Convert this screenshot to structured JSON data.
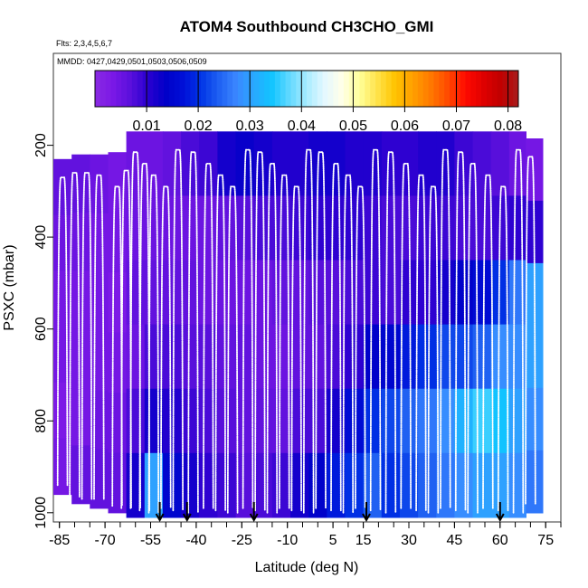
{
  "chart_data": {
    "type": "heatmap",
    "title": "ATOM4 Southbound CH3CHO_GMI",
    "flights_label": "Flts: 2,3,4,5,6,7",
    "dates_label": "MMDD: 0427,0429,0501,0503,0506,0509",
    "xlabel": "Latitude (deg N)",
    "ylabel": "PSXC (mbar)",
    "xlim": [
      -87,
      80
    ],
    "ylim": [
      1020,
      0
    ],
    "x_ticks": [
      -85,
      -70,
      -55,
      -40,
      -25,
      -10,
      5,
      15,
      30,
      45,
      60,
      75
    ],
    "x_tick_labels": [
      "-85",
      "-70",
      "-55",
      "-40",
      "-25",
      "-10",
      "5",
      "15",
      "30",
      "45",
      "60",
      "75"
    ],
    "y_ticks": [
      200,
      400,
      600,
      800,
      1000
    ],
    "y_tick_labels": [
      "200",
      "400",
      "600",
      "800",
      "1000"
    ],
    "colorbar": {
      "min": 0.0,
      "max": 0.082,
      "ticks": [
        0.01,
        0.02,
        0.03,
        0.04,
        0.05,
        0.06,
        0.07,
        0.08
      ],
      "tick_labels": [
        "0.01",
        "0.02",
        "0.03",
        "0.04",
        "0.05",
        "0.06",
        "0.07",
        "0.08"
      ],
      "colors": [
        "#8a2be2",
        "#7b18e6",
        "#5a10dc",
        "#2a00d0",
        "#0000c8",
        "#0010d8",
        "#0034e6",
        "#1f60f2",
        "#3a86ff",
        "#2aa8ff",
        "#10c4ff",
        "#60d8ff",
        "#a8ecff",
        "#e4f8ff",
        "#ffffe8",
        "#ffff9a",
        "#ffe24a",
        "#ffc400",
        "#ffa000",
        "#ff7a00",
        "#ff4a00",
        "#ff0a00",
        "#e00000",
        "#c00000",
        "#a81c1c"
      ]
    },
    "arrow_latitudes": [
      -52,
      -43,
      -21,
      16,
      60
    ],
    "profile_latitudes": [
      -84,
      -80,
      -76,
      -72,
      -66,
      -63,
      -60,
      -57,
      -54,
      -50,
      -46,
      -41,
      -36,
      -32,
      -28,
      -23,
      -19,
      -15,
      -11,
      -7,
      -3,
      1,
      6,
      10,
      14,
      19,
      24,
      29,
      34,
      38,
      42,
      47,
      51,
      56,
      61,
      66,
      70
    ],
    "columns": [
      {
        "lat": -84,
        "top": 230,
        "bottom": 960,
        "values": [
          0.006,
          0.005,
          0.004,
          0.004,
          0.003,
          0.004
        ]
      },
      {
        "lat": -78,
        "top": 220,
        "bottom": 980,
        "values": [
          0.006,
          0.005,
          0.004,
          0.004,
          0.004,
          0.006
        ]
      },
      {
        "lat": -72,
        "top": 220,
        "bottom": 990,
        "values": [
          0.005,
          0.004,
          0.004,
          0.004,
          0.005,
          0.006
        ]
      },
      {
        "lat": -66,
        "top": 215,
        "bottom": 1000,
        "values": [
          0.004,
          0.004,
          0.003,
          0.004,
          0.005,
          0.006
        ]
      },
      {
        "lat": -60,
        "top": 170,
        "bottom": 1010,
        "values": [
          0.005,
          0.005,
          0.006,
          0.005,
          0.008,
          0.012
        ]
      },
      {
        "lat": -54,
        "top": 170,
        "bottom": 1010,
        "values": [
          0.005,
          0.005,
          0.006,
          0.008,
          0.012,
          0.03
        ]
      },
      {
        "lat": -48,
        "top": 170,
        "bottom": 1010,
        "values": [
          0.006,
          0.005,
          0.006,
          0.008,
          0.011,
          0.015
        ]
      },
      {
        "lat": -42,
        "top": 170,
        "bottom": 1010,
        "values": [
          0.008,
          0.005,
          0.006,
          0.007,
          0.009,
          0.012
        ]
      },
      {
        "lat": -36,
        "top": 170,
        "bottom": 1010,
        "values": [
          0.009,
          0.005,
          0.005,
          0.007,
          0.008,
          0.01
        ]
      },
      {
        "lat": -30,
        "top": 170,
        "bottom": 1010,
        "values": [
          0.012,
          0.006,
          0.005,
          0.006,
          0.007,
          0.009
        ]
      },
      {
        "lat": -24,
        "top": 170,
        "bottom": 1010,
        "values": [
          0.013,
          0.007,
          0.005,
          0.006,
          0.006,
          0.007
        ]
      },
      {
        "lat": -18,
        "top": 170,
        "bottom": 1010,
        "values": [
          0.012,
          0.008,
          0.005,
          0.005,
          0.006,
          0.008
        ]
      },
      {
        "lat": -12,
        "top": 170,
        "bottom": 1010,
        "values": [
          0.011,
          0.008,
          0.006,
          0.005,
          0.006,
          0.009
        ]
      },
      {
        "lat": -6,
        "top": 170,
        "bottom": 1010,
        "values": [
          0.011,
          0.009,
          0.006,
          0.006,
          0.008,
          0.012
        ]
      },
      {
        "lat": 0,
        "top": 170,
        "bottom": 1010,
        "values": [
          0.012,
          0.01,
          0.007,
          0.006,
          0.008,
          0.014
        ]
      },
      {
        "lat": 6,
        "top": 170,
        "bottom": 1010,
        "values": [
          0.012,
          0.01,
          0.007,
          0.008,
          0.012,
          0.018
        ]
      },
      {
        "lat": 12,
        "top": 170,
        "bottom": 1010,
        "values": [
          0.011,
          0.01,
          0.008,
          0.01,
          0.016,
          0.02
        ]
      },
      {
        "lat": 18,
        "top": 170,
        "bottom": 1010,
        "values": [
          0.011,
          0.009,
          0.009,
          0.014,
          0.02,
          0.024
        ]
      },
      {
        "lat": 24,
        "top": 170,
        "bottom": 1010,
        "values": [
          0.01,
          0.008,
          0.008,
          0.015,
          0.022,
          0.02
        ]
      },
      {
        "lat": 30,
        "top": 170,
        "bottom": 1010,
        "values": [
          0.01,
          0.008,
          0.01,
          0.018,
          0.024,
          0.022
        ]
      },
      {
        "lat": 36,
        "top": 170,
        "bottom": 1010,
        "values": [
          0.011,
          0.009,
          0.01,
          0.02,
          0.026,
          0.024
        ]
      },
      {
        "lat": 42,
        "top": 170,
        "bottom": 1010,
        "values": [
          0.011,
          0.009,
          0.012,
          0.022,
          0.028,
          0.026
        ]
      },
      {
        "lat": 48,
        "top": 170,
        "bottom": 1010,
        "values": [
          0.009,
          0.008,
          0.014,
          0.022,
          0.032,
          0.028
        ]
      },
      {
        "lat": 54,
        "top": 170,
        "bottom": 1010,
        "values": [
          0.008,
          0.008,
          0.016,
          0.024,
          0.036,
          0.03
        ]
      },
      {
        "lat": 60,
        "top": 170,
        "bottom": 1010,
        "values": [
          0.007,
          0.009,
          0.02,
          0.028,
          0.034,
          0.03
        ]
      },
      {
        "lat": 66,
        "top": 170,
        "bottom": 1010,
        "values": [
          0.005,
          0.01,
          0.026,
          0.028,
          0.03,
          0.028
        ]
      },
      {
        "lat": 71,
        "top": 185,
        "bottom": 1000,
        "values": [
          0.004,
          0.01,
          0.03,
          0.03,
          0.028,
          0.026
        ]
      }
    ]
  }
}
